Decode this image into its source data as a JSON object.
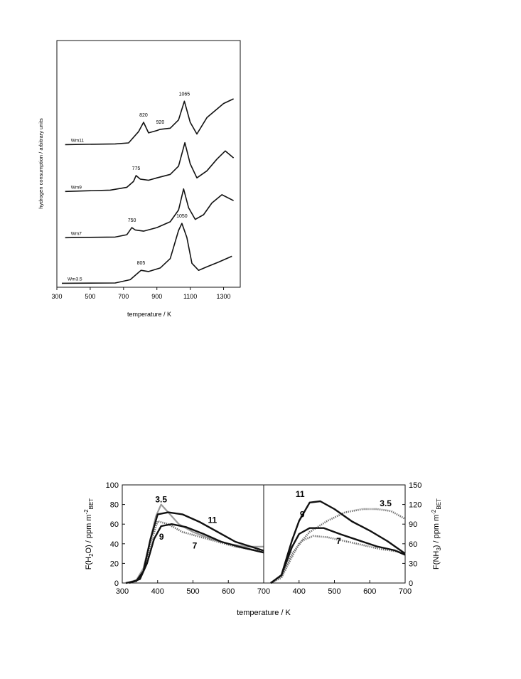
{
  "chart_data": [
    {
      "type": "line",
      "title": "",
      "xlabel": "temperature / K",
      "ylabel": "hydrogen consumption / arbitrary units",
      "xlim": [
        300,
        1400
      ],
      "x_ticks": [
        "300",
        "500",
        "700",
        "900",
        "1100",
        "1300"
      ],
      "y_ticks": [],
      "grid": false,
      "series": [
        {
          "name": "Wm11",
          "offset": 3.0,
          "points": [
            [
              350,
              0.05
            ],
            [
              650,
              0.08
            ],
            [
              730,
              0.12
            ],
            [
              790,
              0.6
            ],
            [
              820,
              1.0
            ],
            [
              850,
              0.55
            ],
            [
              900,
              0.65
            ],
            [
              920,
              0.7
            ],
            [
              980,
              0.75
            ],
            [
              1030,
              1.1
            ],
            [
              1065,
              1.9
            ],
            [
              1100,
              1.0
            ],
            [
              1140,
              0.5
            ],
            [
              1200,
              1.2
            ],
            [
              1300,
              1.8
            ],
            [
              1360,
              2.0
            ]
          ],
          "peak_labels": [
            {
              "x": 820,
              "label": "820"
            },
            {
              "x": 920,
              "label": "920"
            },
            {
              "x": 1065,
              "label": "1065"
            }
          ]
        },
        {
          "name": "Wm9",
          "offset": 2.0,
          "points": [
            [
              350,
              0.02
            ],
            [
              620,
              0.08
            ],
            [
              720,
              0.2
            ],
            [
              760,
              0.45
            ],
            [
              775,
              0.7
            ],
            [
              800,
              0.55
            ],
            [
              850,
              0.5
            ],
            [
              900,
              0.6
            ],
            [
              980,
              0.75
            ],
            [
              1030,
              1.1
            ],
            [
              1068,
              2.1
            ],
            [
              1100,
              1.2
            ],
            [
              1140,
              0.6
            ],
            [
              1200,
              0.9
            ],
            [
              1260,
              1.4
            ],
            [
              1310,
              1.75
            ],
            [
              1360,
              1.45
            ]
          ],
          "peak_labels": [
            {
              "x": 775,
              "label": "775"
            }
          ]
        },
        {
          "name": "Wm7",
          "offset": 1.0,
          "points": [
            [
              350,
              0.02
            ],
            [
              650,
              0.05
            ],
            [
              720,
              0.15
            ],
            [
              750,
              0.45
            ],
            [
              770,
              0.35
            ],
            [
              820,
              0.3
            ],
            [
              900,
              0.45
            ],
            [
              980,
              0.7
            ],
            [
              1030,
              1.2
            ],
            [
              1060,
              2.1
            ],
            [
              1090,
              1.3
            ],
            [
              1130,
              0.8
            ],
            [
              1180,
              1.0
            ],
            [
              1230,
              1.5
            ],
            [
              1290,
              1.85
            ],
            [
              1360,
              1.6
            ]
          ],
          "peak_labels": [
            {
              "x": 750,
              "label": "750"
            }
          ]
        },
        {
          "name": "Wm3.5",
          "offset": 0.0,
          "points": [
            [
              330,
              0.05
            ],
            [
              650,
              0.06
            ],
            [
              740,
              0.2
            ],
            [
              805,
              0.6
            ],
            [
              850,
              0.55
            ],
            [
              920,
              0.7
            ],
            [
              980,
              1.1
            ],
            [
              1030,
              2.3
            ],
            [
              1050,
              2.6
            ],
            [
              1080,
              2.0
            ],
            [
              1110,
              0.9
            ],
            [
              1150,
              0.6
            ],
            [
              1200,
              0.75
            ],
            [
              1270,
              0.95
            ],
            [
              1350,
              1.2
            ]
          ],
          "peak_labels": [
            {
              "x": 805,
              "label": "805"
            },
            {
              "x": 1050,
              "label": "1050"
            }
          ]
        }
      ]
    },
    {
      "type": "line",
      "title": "",
      "xlabel": "temperature / K",
      "ylabel": "F(H2O) / ppm m-2 BET",
      "xlim": [
        300,
        700
      ],
      "ylim": [
        0,
        100
      ],
      "x_ticks": [
        "300",
        "400",
        "500",
        "600",
        "700"
      ],
      "y_ticks": [
        "0",
        "20",
        "40",
        "60",
        "80",
        "100"
      ],
      "grid": false,
      "series": [
        {
          "name": "3.5",
          "style": "gray",
          "points": [
            [
              310,
              0
            ],
            [
              340,
              3
            ],
            [
              360,
              15
            ],
            [
              380,
              45
            ],
            [
              395,
              68
            ],
            [
              410,
              80
            ],
            [
              430,
              72
            ],
            [
              460,
              60
            ],
            [
              500,
              52
            ],
            [
              550,
              45
            ],
            [
              600,
              40
            ],
            [
              650,
              37
            ],
            [
              700,
              37
            ]
          ]
        },
        {
          "name": "7",
          "style": "dotted",
          "points": [
            [
              310,
              0
            ],
            [
              340,
              2
            ],
            [
              360,
              12
            ],
            [
              380,
              40
            ],
            [
              400,
              63
            ],
            [
              430,
              60
            ],
            [
              470,
              52
            ],
            [
              520,
              47
            ],
            [
              570,
              42
            ],
            [
              620,
              37
            ],
            [
              700,
              32
            ]
          ]
        },
        {
          "name": "9",
          "style": "solid",
          "points": [
            [
              320,
              0
            ],
            [
              350,
              4
            ],
            [
              370,
              20
            ],
            [
              390,
              45
            ],
            [
              410,
              58
            ],
            [
              440,
              60
            ],
            [
              480,
              57
            ],
            [
              530,
              50
            ],
            [
              580,
              42
            ],
            [
              630,
              37
            ],
            [
              700,
              31
            ]
          ]
        },
        {
          "name": "11",
          "style": "solid",
          "points": [
            [
              310,
              0
            ],
            [
              340,
              2
            ],
            [
              360,
              12
            ],
            [
              380,
              45
            ],
            [
              400,
              70
            ],
            [
              430,
              72
            ],
            [
              470,
              70
            ],
            [
              520,
              62
            ],
            [
              570,
              52
            ],
            [
              620,
              42
            ],
            [
              700,
              33
            ]
          ]
        }
      ],
      "series_labels": [
        {
          "name": "3.5",
          "x": 410,
          "y": 85
        },
        {
          "name": "11",
          "x": 555,
          "y": 64
        },
        {
          "name": "9",
          "x": 411,
          "y": 47
        },
        {
          "name": "7",
          "x": 505,
          "y": 38
        }
      ]
    },
    {
      "type": "line",
      "title": "",
      "xlabel": "temperature / K",
      "ylabel": "F(NH3) / ppm m-2 BET",
      "xlim": [
        300,
        700
      ],
      "ylim": [
        0,
        150
      ],
      "x_ticks": [
        "300",
        "400",
        "500",
        "600",
        "700"
      ],
      "y_ticks": [
        "0",
        "30",
        "60",
        "90",
        "120",
        "150"
      ],
      "grid": false,
      "series": [
        {
          "name": "3.5",
          "style": "dotted",
          "points": [
            [
              320,
              0
            ],
            [
              350,
              8
            ],
            [
              380,
              40
            ],
            [
              400,
              60
            ],
            [
              430,
              78
            ],
            [
              480,
              95
            ],
            [
              530,
              108
            ],
            [
              580,
              113
            ],
            [
              620,
              113
            ],
            [
              660,
              110
            ],
            [
              700,
              98
            ]
          ]
        },
        {
          "name": "7",
          "style": "dotted",
          "points": [
            [
              320,
              0
            ],
            [
              350,
              10
            ],
            [
              380,
              45
            ],
            [
              410,
              65
            ],
            [
              440,
              72
            ],
            [
              480,
              70
            ],
            [
              530,
              64
            ],
            [
              580,
              58
            ],
            [
              630,
              52
            ],
            [
              680,
              48
            ],
            [
              700,
              44
            ]
          ]
        },
        {
          "name": "9",
          "style": "solid",
          "points": [
            [
              320,
              0
            ],
            [
              350,
              12
            ],
            [
              380,
              55
            ],
            [
              400,
              75
            ],
            [
              430,
              84
            ],
            [
              470,
              84
            ],
            [
              520,
              74
            ],
            [
              570,
              65
            ],
            [
              620,
              56
            ],
            [
              670,
              50
            ],
            [
              700,
              43
            ]
          ]
        },
        {
          "name": "11",
          "style": "solid",
          "points": [
            [
              320,
              0
            ],
            [
              350,
              12
            ],
            [
              380,
              65
            ],
            [
              400,
              95
            ],
            [
              430,
              123
            ],
            [
              460,
              125
            ],
            [
              500,
              113
            ],
            [
              550,
              94
            ],
            [
              600,
              80
            ],
            [
              650,
              64
            ],
            [
              700,
              45
            ]
          ]
        }
      ],
      "series_labels": [
        {
          "name": "11",
          "x": 403,
          "y": 136
        },
        {
          "name": "9",
          "x": 409,
          "y": 105
        },
        {
          "name": "3.5",
          "x": 645,
          "y": 122
        },
        {
          "name": "7",
          "x": 512,
          "y": 64
        }
      ]
    }
  ]
}
